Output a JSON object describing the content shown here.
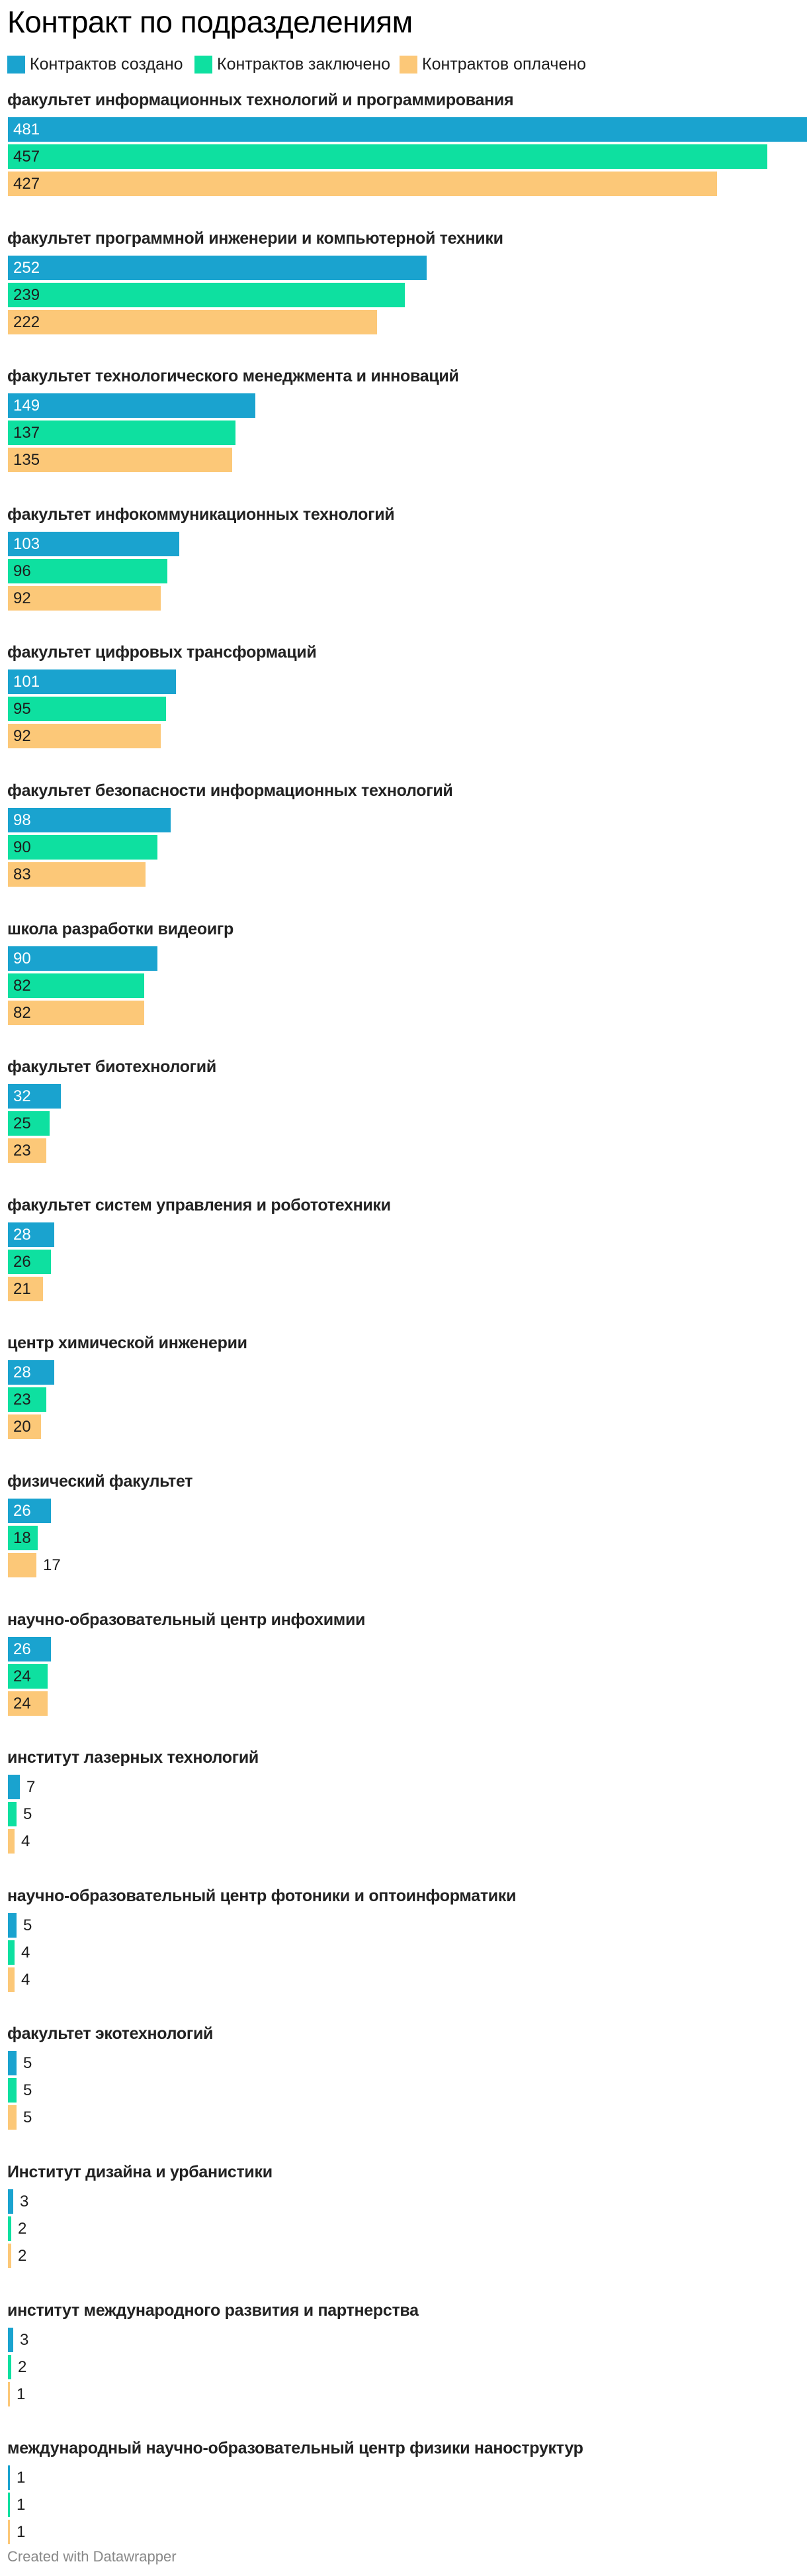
{
  "chart_data": {
    "type": "bar",
    "orientation": "horizontal",
    "title": "Контракт по подразделениям",
    "categories": [
      "факультет информационных технологий и программирования",
      "факультет программной инженерии и компьютерной техники",
      "факультет технологического менеджмента и инноваций",
      "факультет инфокоммуникационных технологий",
      "факультет цифровых трансформаций",
      "факультет безопасности информационных технологий",
      "школа разработки видеоигр",
      "факультет биотехнологий",
      "факультет систем управления и робототехники",
      "центр химической инженерии",
      "физический факультет",
      "научно-образовательный центр инфохимии",
      "институт лазерных технологий",
      "научно-образовательный центр фотоники и оптоинформатики",
      "факультет экотехнологий",
      "Институт дизайна и урбанистики",
      "институт международного развития и партнерства",
      "международный научно-образовательный центр физики наноструктур"
    ],
    "series": [
      {
        "name": "Контрактов создано",
        "color": "#1aa3cf",
        "values": [
          481,
          252,
          149,
          103,
          101,
          98,
          90,
          32,
          28,
          28,
          26,
          26,
          7,
          5,
          5,
          3,
          3,
          1
        ]
      },
      {
        "name": "Контрактов заключено",
        "color": "#0ee0a0",
        "values": [
          457,
          239,
          137,
          96,
          95,
          90,
          82,
          25,
          26,
          23,
          18,
          24,
          5,
          4,
          5,
          2,
          2,
          1
        ]
      },
      {
        "name": "Контрактов оплачено",
        "color": "#fcc878",
        "values": [
          427,
          222,
          135,
          92,
          92,
          83,
          82,
          23,
          21,
          20,
          17,
          24,
          4,
          4,
          5,
          2,
          1,
          1
        ]
      }
    ],
    "xlim": [
      0,
      481
    ],
    "grid": false,
    "legend_position": "top-left"
  },
  "footer": "Created with Datawrapper"
}
